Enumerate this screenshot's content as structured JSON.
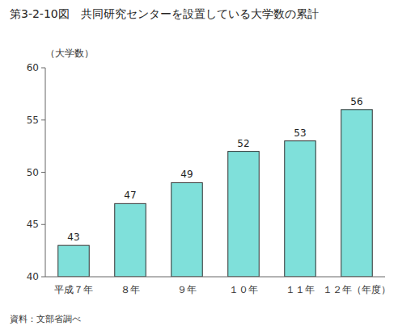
{
  "chart_data": {
    "type": "bar",
    "title": "第3-2-10図　共同研究センターを設置している大学数の累計",
    "y_label": "（大学数）",
    "categories": [
      "平成７年",
      "８年",
      "９年",
      "１０年",
      "１１年",
      "１２年（年度）"
    ],
    "values": [
      43,
      47,
      49,
      52,
      53,
      56
    ],
    "color": "#7FE0DA",
    "ylim": [
      40,
      60
    ],
    "yticks": [
      40,
      45,
      50,
      55,
      60
    ],
    "grid": false,
    "data_labels": true,
    "annotations": [
      "資料：文部省調べ"
    ]
  }
}
